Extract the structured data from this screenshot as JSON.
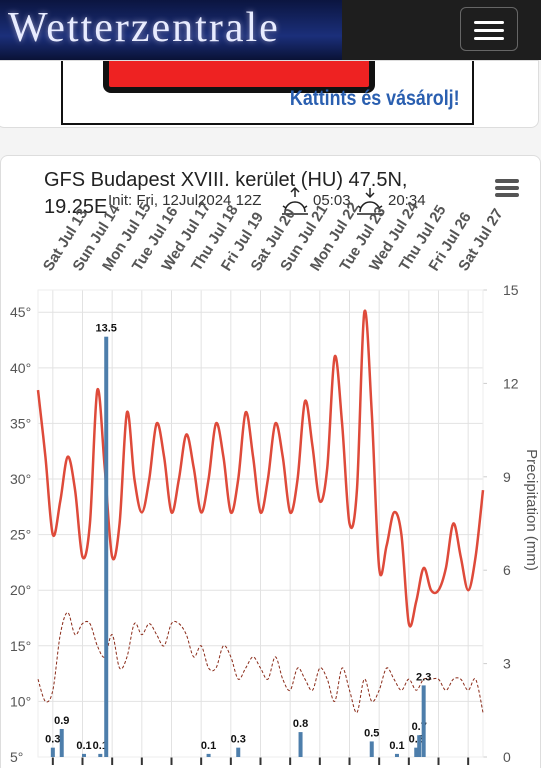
{
  "header": {
    "logo": "Wetterzentrale"
  },
  "ad": {
    "text": "Kattints és vásárolj!"
  },
  "chart_data": {
    "type": "line",
    "title": "GFS Budapest XVIII. kerület (HU) 47.5N, 19.25E",
    "subtitle": "Init: Fri, 12Jul2024 12Z",
    "sunrise": "05:03",
    "sunset": "20:34",
    "y2label": "Precipitation (mm)",
    "xlim": [
      -0.5,
      14.5
    ],
    "xticks": [
      {
        "value": 0,
        "label": "Sat Jul 13"
      },
      {
        "value": 1,
        "label": "Sun Jul 14"
      },
      {
        "value": 2,
        "label": "Mon Jul 15"
      },
      {
        "value": 3,
        "label": "Tue Jul 16"
      },
      {
        "value": 4,
        "label": "Wed Jul 17"
      },
      {
        "value": 5,
        "label": "Thu Jul 18"
      },
      {
        "value": 6,
        "label": "Fri Jul 19"
      },
      {
        "value": 7,
        "label": "Sat Jul 20"
      },
      {
        "value": 8,
        "label": "Sun Jul 21"
      },
      {
        "value": 9,
        "label": "Mon Jul 22"
      },
      {
        "value": 10,
        "label": "Tue Jul 23"
      },
      {
        "value": 11,
        "label": "Wed Jul 24"
      },
      {
        "value": 12,
        "label": "Thu Jul 25"
      },
      {
        "value": 13,
        "label": "Fri Jul 26"
      },
      {
        "value": 14,
        "label": "Sat Jul 27"
      }
    ],
    "ylim": [
      5,
      47
    ],
    "yticks": [
      {
        "value": 5,
        "label": "5°"
      },
      {
        "value": 10,
        "label": "10°"
      },
      {
        "value": 15,
        "label": "15°"
      },
      {
        "value": 20,
        "label": "20°"
      },
      {
        "value": 25,
        "label": "25°"
      },
      {
        "value": 30,
        "label": "30°"
      },
      {
        "value": 35,
        "label": "35°"
      },
      {
        "value": 40,
        "label": "40°"
      },
      {
        "value": 45,
        "label": "45°"
      }
    ],
    "y2lim": [
      0,
      15
    ],
    "y2ticks": [
      0,
      3,
      6,
      9,
      12,
      15
    ],
    "grid": true,
    "x": [
      -0.5,
      -0.25,
      0,
      0.25,
      0.5,
      0.75,
      1,
      1.25,
      1.5,
      1.75,
      2,
      2.25,
      2.5,
      2.75,
      3,
      3.25,
      3.5,
      3.75,
      4,
      4.25,
      4.5,
      4.75,
      5,
      5.25,
      5.5,
      5.75,
      6,
      6.25,
      6.5,
      6.75,
      7,
      7.25,
      7.5,
      7.75,
      8,
      8.25,
      8.5,
      8.75,
      9,
      9.25,
      9.5,
      9.75,
      10,
      10.25,
      10.5,
      10.75,
      11,
      11.25,
      11.5,
      11.75,
      12,
      12.25,
      12.5,
      12.75,
      13,
      13.25,
      13.5,
      13.75,
      14,
      14.25,
      14.5
    ],
    "series": [
      {
        "color": "#de4a3a",
        "values": [
          38,
          32,
          25,
          28,
          32,
          29,
          23,
          26,
          38,
          31,
          23,
          26,
          36,
          30,
          27,
          30,
          35,
          32,
          27,
          30,
          34,
          31,
          27,
          30,
          35,
          32,
          27,
          30,
          36,
          32,
          27,
          30,
          35,
          32,
          27,
          30,
          37,
          33,
          28,
          31,
          41,
          35,
          26,
          29,
          45,
          36,
          22,
          24,
          27,
          25,
          17,
          19,
          22,
          20,
          20,
          22,
          26,
          23,
          20,
          23,
          29
        ]
      },
      {
        "color": "#8a2a18",
        "dashed": true,
        "values": [
          12,
          10,
          11,
          16,
          18,
          16,
          17,
          17,
          15,
          14,
          16,
          13,
          14,
          17,
          16,
          17,
          16,
          15,
          17,
          17,
          16,
          14,
          15,
          13,
          13,
          15,
          14,
          12,
          13,
          14,
          13,
          12,
          14,
          12,
          11,
          13,
          12,
          11,
          13,
          12,
          10,
          13,
          11,
          9,
          12,
          10,
          11,
          13,
          12,
          11,
          12,
          11,
          12,
          12,
          12,
          11,
          12,
          12,
          11,
          12,
          9
        ]
      },
      {
        "type": "bar",
        "axis": "y2",
        "color": "#4d7eab",
        "x": [
          0,
          0.3,
          1.05,
          1.6,
          1.8,
          5.25,
          6.25,
          8.35,
          10.75,
          11.6,
          12.25,
          12.35,
          12.5
        ],
        "values": [
          0.3,
          0.9,
          0.1,
          0.1,
          13.5,
          0.1,
          0.3,
          0.8,
          0.5,
          0.1,
          0.3,
          0.7,
          2.3
        ]
      }
    ]
  }
}
